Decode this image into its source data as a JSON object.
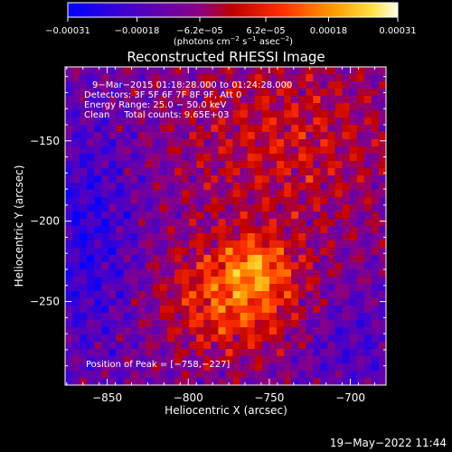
{
  "chart_data": {
    "type": "heatmap",
    "title": "Reconstructed RHESSI Image",
    "xlabel": "Heliocentric X (arcsec)",
    "ylabel": "Heliocentric Y (arcsec)",
    "xlim": [
      -876,
      -678
    ],
    "ylim": [
      -302,
      -104
    ],
    "x_ticks": [
      {
        "value": -850,
        "label": "−850"
      },
      {
        "value": -800,
        "label": "−800"
      },
      {
        "value": -750,
        "label": "−750"
      },
      {
        "value": -700,
        "label": "−700"
      }
    ],
    "y_ticks": [
      {
        "value": -150,
        "label": "−150"
      },
      {
        "value": -200,
        "label": "−200"
      },
      {
        "value": -250,
        "label": "−250"
      }
    ],
    "colorbar": {
      "min": -0.00031,
      "max": 0.00031,
      "tick_values": [
        -0.00031,
        -0.00018,
        -6.2e-05,
        6.2e-05,
        0.00018,
        0.00031
      ],
      "tick_labels": [
        "−0.00031",
        "−0.00018",
        "−6.2e−05",
        "6.2e−05",
        "0.00018",
        "0.00031"
      ],
      "units_prefix": "(photons cm",
      "units_exp1": "−2",
      "units_mid1": " s",
      "units_exp2": "−1",
      "units_mid2": " asec",
      "units_exp3": "−2",
      "units_suffix": ")"
    },
    "annotations": [
      "9−Mar−2015 01:18:28.000 to 01:24:28.000",
      "Detectors: 3F 5F 6F 7F 8F 9F, Att 0",
      "Energy Range: 25.0 − 50.0 keV",
      "Clean     Total counts: 9.65E+03"
    ],
    "peak_text": "Position of Peak = [−758,−227]",
    "peak": {
      "x": -758,
      "y": -227
    },
    "source": {
      "x": -770,
      "y": -248
    }
  },
  "footer": {
    "date": "19−May−2022 11:44"
  }
}
